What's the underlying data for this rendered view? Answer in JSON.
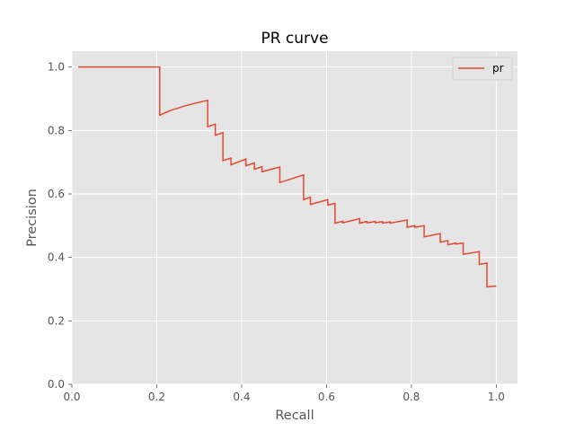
{
  "colors": {
    "plot_background": "#e5e5e5",
    "grid": "#ffffff",
    "series": "#e24a33",
    "text": "#555555"
  },
  "chart_data": {
    "type": "line",
    "title": "PR curve",
    "xlabel": "Recall",
    "ylabel": "Precision",
    "xlim": [
      0.0,
      1.05
    ],
    "ylim": [
      0.0,
      1.05
    ],
    "xticks": [
      "0.0",
      "0.2",
      "0.4",
      "0.6",
      "0.8",
      "1.0"
    ],
    "yticks": [
      "0.0",
      "0.2",
      "0.4",
      "0.6",
      "0.8",
      "1.0"
    ],
    "grid": true,
    "legend": "top-right",
    "series": [
      {
        "name": "pr",
        "x": [
          0.015,
          0.207,
          0.207,
          0.23,
          0.26,
          0.29,
          0.32,
          0.32,
          0.338,
          0.338,
          0.356,
          0.356,
          0.375,
          0.375,
          0.41,
          0.41,
          0.43,
          0.43,
          0.448,
          0.448,
          0.49,
          0.49,
          0.546,
          0.546,
          0.562,
          0.562,
          0.603,
          0.603,
          0.62,
          0.62,
          0.638,
          0.638,
          0.678,
          0.678,
          0.695,
          0.695,
          0.715,
          0.715,
          0.732,
          0.732,
          0.75,
          0.75,
          0.79,
          0.79,
          0.808,
          0.808,
          0.83,
          0.83,
          0.868,
          0.868,
          0.886,
          0.886,
          0.905,
          0.905,
          0.922,
          0.922,
          0.96,
          0.96,
          0.978,
          0.978,
          1.0
        ],
        "y": [
          1.0,
          1.0,
          0.848,
          0.862,
          0.875,
          0.886,
          0.895,
          0.812,
          0.82,
          0.785,
          0.793,
          0.705,
          0.713,
          0.692,
          0.71,
          0.689,
          0.698,
          0.678,
          0.686,
          0.67,
          0.685,
          0.636,
          0.66,
          0.582,
          0.59,
          0.567,
          0.582,
          0.565,
          0.57,
          0.508,
          0.514,
          0.509,
          0.522,
          0.508,
          0.513,
          0.509,
          0.513,
          0.509,
          0.513,
          0.508,
          0.512,
          0.508,
          0.518,
          0.495,
          0.5,
          0.495,
          0.5,
          0.465,
          0.475,
          0.448,
          0.453,
          0.44,
          0.445,
          0.442,
          0.445,
          0.41,
          0.418,
          0.378,
          0.382,
          0.307,
          0.31
        ]
      }
    ]
  }
}
